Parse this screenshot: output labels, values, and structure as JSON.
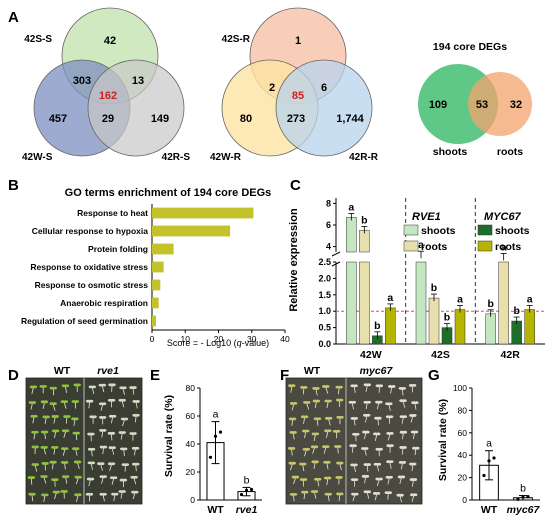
{
  "panel_letters": {
    "A": "A",
    "B": "B",
    "C": "C",
    "D": "D",
    "E": "E",
    "F": "F",
    "G": "G"
  },
  "panelA": {
    "venn_s": {
      "labels": {
        "top": "42S-S",
        "left": "42W-S",
        "right": "42R-S"
      },
      "values": {
        "top_only": "42",
        "left_only": "457",
        "right_only": "149",
        "top_left": "303",
        "top_right": "13",
        "left_right": "29",
        "center": "162"
      },
      "colors": {
        "top": "#c9e5b6",
        "left": "#7d8fc0",
        "right": "#c8c8c8",
        "center_text": "#d32020"
      }
    },
    "venn_r": {
      "labels": {
        "top": "42S-R",
        "left": "42W-R",
        "right": "42R-R"
      },
      "values": {
        "top_only": "1",
        "left_only": "80",
        "right_only": "1,744",
        "top_left": "2",
        "top_right": "6",
        "left_right": "273",
        "center": "85"
      },
      "colors": {
        "top": "#f8c6ad",
        "left": "#fbe4a2",
        "right": "#b8d3ee",
        "center_text": "#d32020"
      }
    },
    "venn_core": {
      "title": "194 core DEGs",
      "values": {
        "left_only": "109",
        "overlap": "53",
        "right_only": "32"
      },
      "labels": {
        "left": "shoots",
        "right": "roots"
      },
      "colors": {
        "left": "#4fc27a",
        "right": "#f3a36c"
      }
    }
  },
  "panelB": {
    "title": "GO terms enrichment of 194 core DEGs",
    "xlabel_prefix": "Score = - Log10 (",
    "xlabel_var": "q",
    "xlabel_suffix": "-value)",
    "bar_color": "#c3c22a"
  },
  "panelC": {
    "ylabel": "Relative expression",
    "legend_left": {
      "gene": "RVE1",
      "items": [
        "shoots",
        "roots"
      ],
      "colors": [
        "#c4e6c0",
        "#e8e0ac"
      ]
    },
    "legend_right": {
      "gene": "MYC67",
      "items": [
        "shoots",
        "roots"
      ],
      "colors": [
        "#1e6e2a",
        "#b5b500"
      ]
    }
  },
  "panelD": {
    "wt_label": "WT",
    "mutant_label": "rve1"
  },
  "panelE": {
    "ylabel": "Survival rate (%)",
    "bar_color": "#ffffff"
  },
  "panelF": {
    "wt_label": "WT",
    "mutant_label": "myc67"
  },
  "panelG": {
    "ylabel": "Survival rate (%)",
    "bar_color": "#ffffff"
  },
  "chart_data": [
    {
      "type": "bar",
      "orientation": "horizontal",
      "title": "GO terms enrichment of 194 core DEGs",
      "categories": [
        "Response to heat",
        "Cellular response to hypoxia",
        "Protein folding",
        "Response to oxidative stress",
        "Response to osmotic stress",
        "Anaerobic respiration",
        "Regulation of seed germination"
      ],
      "values": [
        30.5,
        23.5,
        6.5,
        3.5,
        2.5,
        2.0,
        1.2
      ],
      "xlim": [
        0,
        40
      ],
      "xticks": [
        "0",
        "10",
        "20",
        "30",
        "40"
      ]
    },
    {
      "type": "bar",
      "ylabel": "Relative expression",
      "groups": [
        "42W",
        "42S",
        "42R"
      ],
      "series_order": [
        "RVE1 shoots",
        "RVE1 roots",
        "MYC67 shoots",
        "MYC67 roots"
      ],
      "values": [
        [
          6.7,
          5.5,
          0.25,
          1.1
        ],
        [
          3.2,
          1.4,
          0.5,
          1.05
        ],
        [
          0.92,
          3.0,
          0.7,
          1.05
        ]
      ],
      "letters": [
        [
          "a",
          "b",
          "b",
          "a"
        ],
        [
          "a",
          "b",
          "b",
          "a"
        ],
        [
          "b",
          "a",
          "b",
          "a"
        ]
      ],
      "yticks_lower": [
        "0.0",
        "0.5",
        "1.0",
        "1.5",
        "2.0",
        "2.5"
      ],
      "yticks_upper": [
        "4",
        "6",
        "8"
      ],
      "reference_line": 1.0
    },
    {
      "type": "bar",
      "ylabel": "Survival rate (%)",
      "categories": [
        "WT",
        "rve1"
      ],
      "values": [
        41,
        6
      ],
      "errors": [
        15,
        3
      ],
      "letters": [
        "a",
        "b"
      ],
      "ylim": [
        0,
        80
      ],
      "yticks": [
        "0",
        "20",
        "40",
        "60",
        "80"
      ]
    },
    {
      "type": "bar",
      "ylabel": "Survival rate (%)",
      "categories": [
        "WT",
        "myc67"
      ],
      "values": [
        31,
        2
      ],
      "errors": [
        13,
        2
      ],
      "letters": [
        "a",
        "b"
      ],
      "ylim": [
        0,
        100
      ],
      "yticks": [
        "0",
        "20",
        "40",
        "60",
        "80",
        "100"
      ]
    }
  ]
}
